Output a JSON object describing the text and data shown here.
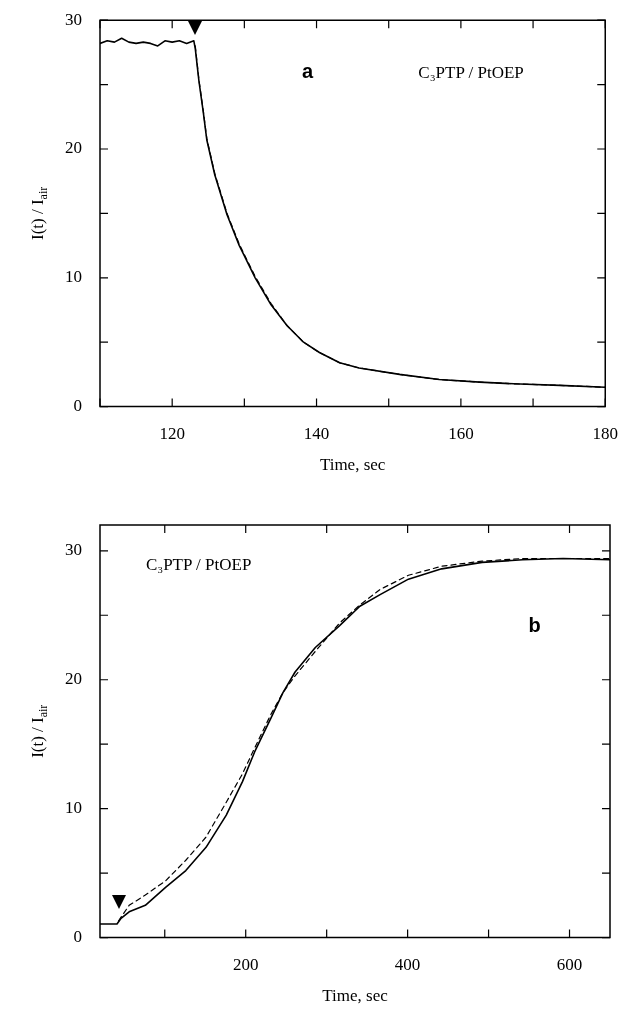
{
  "chart_data": [
    {
      "type": "line",
      "xlabel": "Time, sec",
      "ylabel": "I(t) / I$_{air}$",
      "annotations": [
        "a",
        "C₃PTP / PtOEP"
      ],
      "legend": false,
      "grid": false,
      "marker": "none",
      "xlim": [
        110,
        180
      ],
      "xticks": [
        {
          "value": 110,
          "label": null
        },
        120,
        {
          "value": 130,
          "label": null
        },
        140,
        {
          "value": 150,
          "label": null
        },
        160,
        {
          "value": 170,
          "label": null
        },
        180
      ],
      "ylim": [
        0,
        30
      ],
      "yticks": [
        0,
        {
          "value": 5,
          "label": null
        },
        10,
        {
          "value": 15,
          "label": null
        },
        20,
        {
          "value": 25,
          "label": null
        },
        30
      ],
      "series": [
        {
          "color": "#000000",
          "line_style": "solid",
          "x": [
            110,
            111,
            112,
            113,
            114,
            115,
            116,
            117,
            118,
            119,
            120,
            121,
            122,
            123,
            123.2,
            123.7,
            124.3,
            124.8,
            125.9,
            127.6,
            129.3,
            131.5,
            133.7,
            135.9,
            138.2,
            140.4,
            143.2,
            145.9,
            151.5,
            157,
            162.6,
            168.2,
            173.7,
            180
          ],
          "values": [
            28.2,
            28.4,
            28.3,
            28.6,
            28.3,
            28.2,
            28.3,
            28.2,
            28.0,
            28.4,
            28.3,
            28.4,
            28.2,
            28.4,
            27.8,
            25.3,
            22.9,
            20.7,
            18.0,
            14.9,
            12.5,
            10.0,
            7.9,
            6.3,
            5.0,
            4.2,
            3.4,
            3.0,
            2.5,
            2.1,
            1.9,
            1.75,
            1.65,
            1.5
          ]
        },
        {
          "color": "#000000",
          "line_style": "dashed",
          "x": [
            123.2,
            123.7,
            124.3,
            124.8,
            125.9,
            127.6,
            129.3,
            131.5,
            133.7,
            135.9,
            138.2,
            140.4,
            143.2,
            145.9,
            151.5,
            157,
            162.6,
            168.2,
            173.7,
            180
          ],
          "values": [
            28.0,
            25.4,
            23.0,
            20.8,
            18.1,
            15.0,
            12.6,
            10.1,
            8.0,
            6.3,
            5.0,
            4.2,
            3.4,
            3.0,
            2.5,
            2.1,
            1.9,
            1.75,
            1.65,
            1.5
          ]
        }
      ]
    },
    {
      "type": "line",
      "xlabel": "Time, sec",
      "ylabel": "I(t) / I$_{air}$",
      "annotations": [
        "b",
        "C₃PTP / PtOEP"
      ],
      "legend": false,
      "grid": false,
      "marker": "none",
      "xlim": [
        20,
        650
      ],
      "xticks": [
        {
          "value": 100,
          "label": null
        },
        200,
        {
          "value": 300,
          "label": null
        },
        400,
        {
          "value": 500,
          "label": null
        },
        600
      ],
      "ylim": [
        0,
        32
      ],
      "yticks": [
        0,
        {
          "value": 5,
          "label": null
        },
        10,
        {
          "value": 15,
          "label": null
        },
        20,
        {
          "value": 25,
          "label": null
        },
        30
      ],
      "series": [
        {
          "color": "#000000",
          "line_style": "solid",
          "x": [
            20,
            41,
            46,
            56,
            76,
            101,
            126,
            151,
            176,
            196,
            211,
            231,
            246,
            261,
            286,
            316,
            341,
            366,
            401,
            442,
            492,
            542,
            592,
            650
          ],
          "values": [
            1.05,
            1.05,
            1.5,
            2.0,
            2.5,
            3.9,
            5.2,
            7.0,
            9.5,
            12.1,
            14.4,
            17.0,
            19.0,
            20.6,
            22.5,
            24.2,
            25.7,
            26.6,
            27.8,
            28.6,
            29.1,
            29.3,
            29.4,
            29.3
          ]
        },
        {
          "color": "#000000",
          "line_style": "dashed",
          "x": [
            43,
            56,
            76,
            101,
            126,
            151,
            176,
            196,
            211,
            231,
            246,
            261,
            286,
            316,
            341,
            366,
            401,
            442,
            492,
            542,
            650
          ],
          "values": [
            1.3,
            2.5,
            3.3,
            4.4,
            6.0,
            7.8,
            10.5,
            12.7,
            14.7,
            17.3,
            19.0,
            20.3,
            22.2,
            24.4,
            25.8,
            27.0,
            28.1,
            28.8,
            29.2,
            29.4,
            29.4
          ]
        }
      ]
    }
  ]
}
